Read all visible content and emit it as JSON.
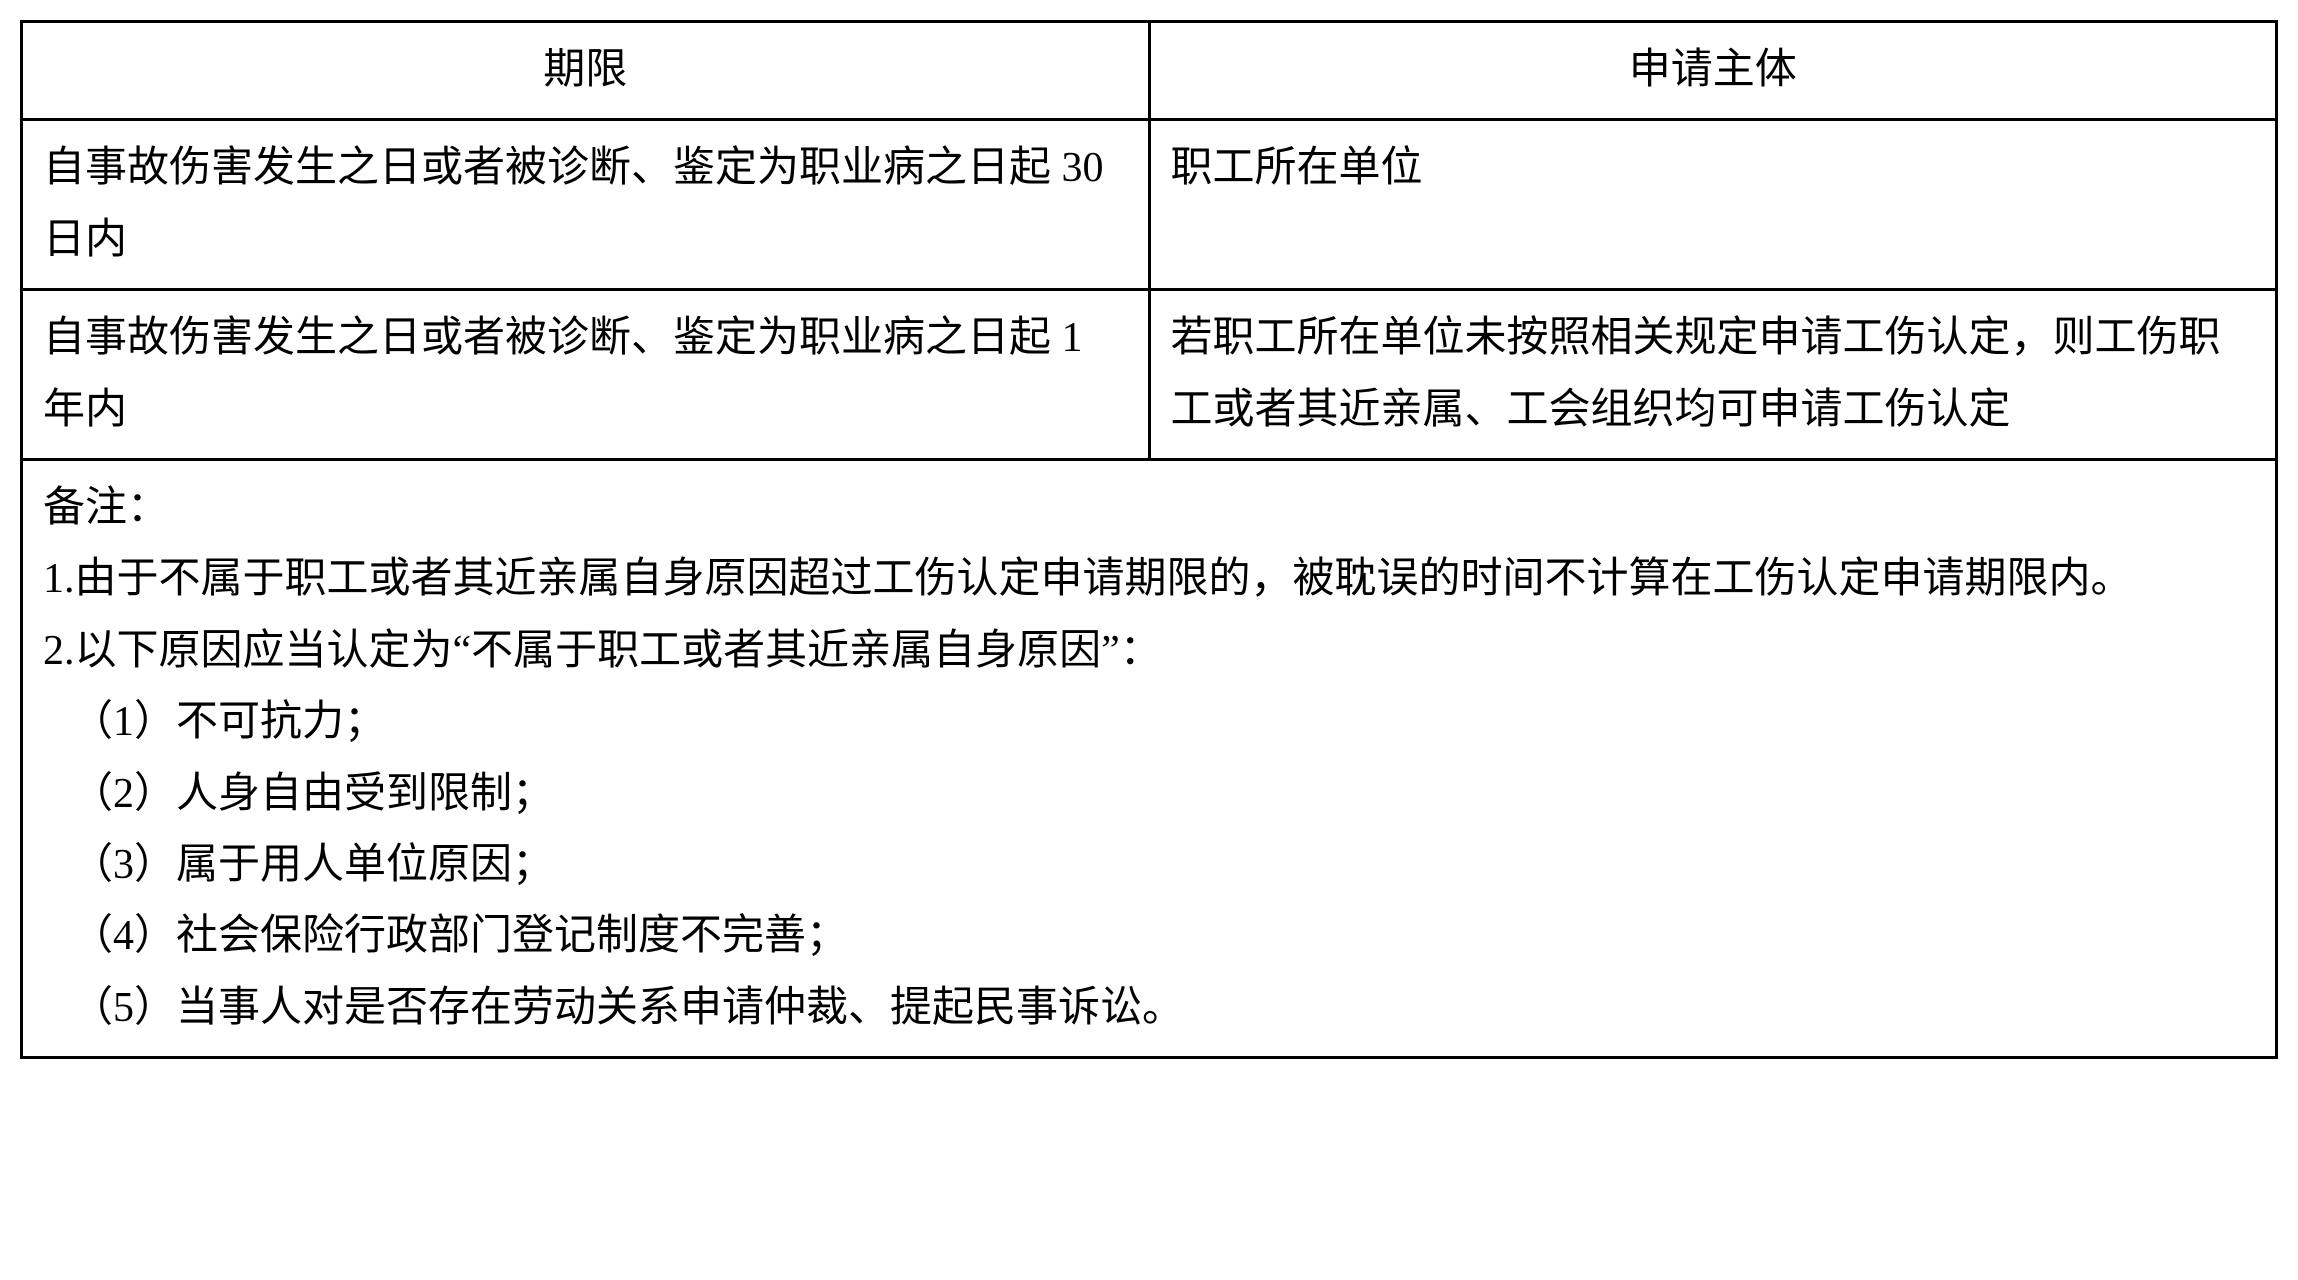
{
  "table": {
    "headers": {
      "col1": "期限",
      "col2": "申请主体"
    },
    "rows": [
      {
        "col1": "自事故伤害发生之日或者被诊断、鉴定为职业病之日起 30 日内",
        "col2": "职工所在单位"
      },
      {
        "col1": "自事故伤害发生之日或者被诊断、鉴定为职业病之日起 1 年内",
        "col2": "若职工所在单位未按照相关规定申请工伤认定，则工伤职工或者其近亲属、工会组织均可申请工伤认定"
      }
    ],
    "notes": {
      "title": "备注：",
      "line1": "1.由于不属于职工或者其近亲属自身原因超过工伤认定申请期限的，被耽误的时间不计算在工伤认定申请期限内。",
      "line2": "2.以下原因应当认定为“不属于职工或者其近亲属自身原因”：",
      "sub1": "（1）不可抗力；",
      "sub2": "（2）人身自由受到限制；",
      "sub3": "（3）属于用人单位原因；",
      "sub4": "（4）社会保险行政部门登记制度不完善；",
      "sub5": "（5）当事人对是否存在劳动关系申请仲裁、提起民事诉讼。"
    }
  },
  "style": {
    "border_color": "#000000",
    "border_width": 3,
    "background_color": "#ffffff",
    "text_color": "#000000",
    "font_size": 42,
    "line_height": 1.7,
    "font_family": "SimSun"
  }
}
